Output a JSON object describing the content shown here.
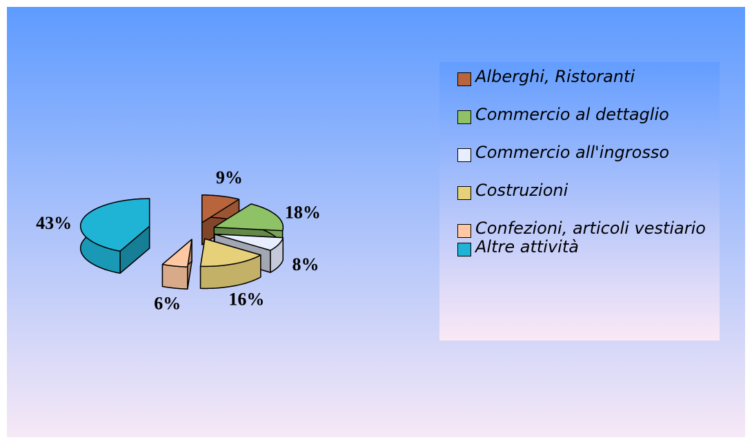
{
  "chart_data": {
    "type": "pie3d",
    "categories": [
      "Alberghi, Ristoranti",
      "Commercio al dettaglio",
      "Commercio all'ingrosso",
      "Costruzioni",
      "Confezioni, articoli vestiario",
      "Altre attività"
    ],
    "values": [
      9,
      18,
      8,
      16,
      6,
      43
    ],
    "value_labels": [
      "9%",
      "18%",
      "8%",
      "16%",
      "6%",
      "43%"
    ],
    "colors": [
      "#b8643c",
      "#8fc266",
      "#e8eeff",
      "#e6d07a",
      "#ffc8a2",
      "#1fb4d6"
    ],
    "legend": "right"
  }
}
